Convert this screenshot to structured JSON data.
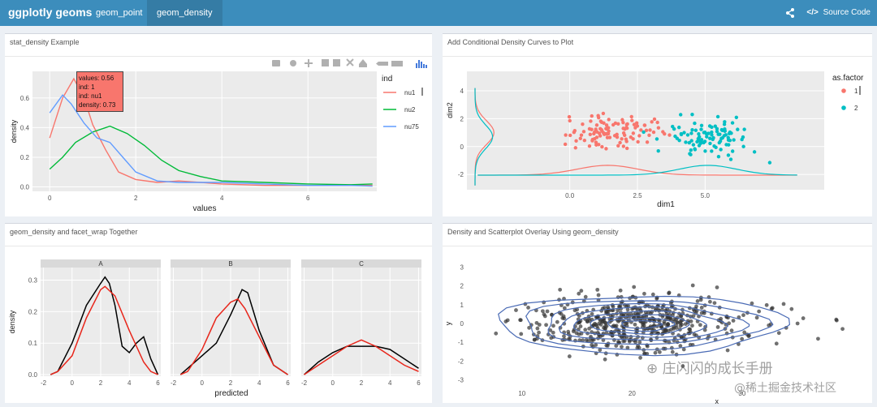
{
  "navbar": {
    "brand": "ggplotly geoms",
    "tabs": [
      {
        "label": "geom_point"
      },
      {
        "label": "geom_density"
      }
    ],
    "active_tab": "geom_density",
    "share_icon": "share-icon",
    "source_code_label": "Source Code"
  },
  "panels": {
    "p1": {
      "title": "stat_density Example"
    },
    "p2": {
      "title": "Add Conditional Density Curves to Plot"
    },
    "p3": {
      "title": "geom_density and facet_wrap Together"
    },
    "p4": {
      "title": "Density and Scatterplot Overlay Using geom_density"
    }
  },
  "modebar": {
    "icons": [
      "camera-icon",
      "zoom-icon",
      "pan-icon",
      "zoom-in-icon",
      "zoom-out-icon",
      "autoscale-icon",
      "reset-axes-icon",
      "hover-closest-icon",
      "hover-compare-icon",
      "plotly-logo-icon"
    ]
  },
  "tooltip": {
    "line1": "values: 0.56",
    "line2": "ind: 1",
    "line3": "ind: nu1",
    "line4": "density: 0.73"
  },
  "watermark": {
    "line1": "庄闪闪的成长手册",
    "line2": "@稀土掘金技术社区"
  },
  "chart_data": [
    {
      "type": "line",
      "title": "stat_density Example",
      "xlabel": "values",
      "ylabel": "density",
      "xlim": [
        -0.4,
        7.6
      ],
      "ylim": [
        -0.03,
        0.78
      ],
      "xticks": [
        "0",
        "2",
        "4",
        "6"
      ],
      "yticks": [
        "0.0",
        "0.2",
        "0.4",
        "0.6"
      ],
      "legend": {
        "title": "ind",
        "entries": [
          "nu1",
          "nu2",
          "nu75"
        ],
        "colors": [
          "#F8766D",
          "#00BA38",
          "#619CFF"
        ],
        "placement": "right"
      },
      "series": [
        {
          "name": "nu1",
          "color": "#F8766D",
          "x": [
            0,
            0.3,
            0.56,
            0.8,
            1.0,
            1.3,
            1.6,
            2.0,
            2.5,
            3.0,
            3.5,
            4.0,
            5.0,
            6.0,
            7.0,
            7.5
          ],
          "y": [
            0.33,
            0.6,
            0.73,
            0.6,
            0.42,
            0.25,
            0.1,
            0.05,
            0.03,
            0.04,
            0.03,
            0.02,
            0.01,
            0.01,
            0.01,
            0.01
          ]
        },
        {
          "name": "nu2",
          "color": "#00BA38",
          "x": [
            0,
            0.3,
            0.6,
            1.0,
            1.4,
            1.8,
            2.2,
            2.6,
            3.0,
            3.5,
            4.0,
            5.0,
            6.0,
            7.0,
            7.5
          ],
          "y": [
            0.12,
            0.2,
            0.3,
            0.37,
            0.41,
            0.36,
            0.28,
            0.18,
            0.11,
            0.07,
            0.04,
            0.03,
            0.02,
            0.015,
            0.02
          ]
        },
        {
          "name": "nu75",
          "color": "#619CFF",
          "x": [
            0,
            0.3,
            0.5,
            0.8,
            1.1,
            1.4,
            1.7,
            2.0,
            2.5,
            3.0,
            4.0,
            5.0,
            6.0,
            7.0,
            7.5
          ],
          "y": [
            0.5,
            0.62,
            0.56,
            0.43,
            0.33,
            0.3,
            0.2,
            0.1,
            0.04,
            0.03,
            0.03,
            0.02,
            0.01,
            0.01,
            0.005
          ]
        }
      ]
    },
    {
      "type": "scatter",
      "title": "Add Conditional Density Curves to Plot",
      "xlabel": "dim1",
      "ylabel": "dim2",
      "xlim": [
        -3.8,
        9.4
      ],
      "ylim": [
        -3.1,
        5.4
      ],
      "xticks": [
        "0.0",
        "2.5",
        "5.0"
      ],
      "yticks": [
        "-2",
        "0",
        "2",
        "4"
      ],
      "legend": {
        "title": "as.factor",
        "entries": [
          "1",
          "2"
        ],
        "colors": [
          "#F8766D",
          "#00BFC4"
        ],
        "placement": "right"
      },
      "groups": [
        {
          "name": "1",
          "color": "#F8766D",
          "center": [
            1.4,
            1.0
          ],
          "spread": [
            1.5,
            1.2
          ],
          "n": 110
        },
        {
          "name": "2",
          "color": "#00BFC4",
          "center": [
            5.1,
            0.7
          ],
          "spread": [
            1.3,
            1.2
          ],
          "n": 100
        }
      ]
    },
    {
      "type": "line",
      "title": "geom_density and facet_wrap Together",
      "xlabel": "predicted",
      "ylabel": "density",
      "facets": [
        "A",
        "B",
        "C"
      ],
      "xlim": [
        -2.2,
        6.2
      ],
      "ylim": [
        -0.005,
        0.34
      ],
      "xticks": [
        "-2",
        "0",
        "2",
        "4",
        "6"
      ],
      "yticks": [
        "0.0",
        "0.1",
        "0.2",
        "0.3"
      ],
      "series": [
        {
          "facet": "A",
          "color": "#000000",
          "x": [
            -1.5,
            -1,
            0,
            1,
            2,
            2.3,
            2.6,
            3,
            3.5,
            4,
            4.5,
            5,
            5.5,
            6
          ],
          "y": [
            0.0,
            0.01,
            0.1,
            0.22,
            0.29,
            0.31,
            0.29,
            0.22,
            0.09,
            0.07,
            0.1,
            0.12,
            0.05,
            0.0
          ]
        },
        {
          "facet": "A",
          "color": "#E8261B",
          "x": [
            -1.5,
            -1,
            0,
            1,
            2,
            2.3,
            3,
            4,
            5,
            5.5,
            6
          ],
          "y": [
            0.0,
            0.01,
            0.06,
            0.18,
            0.27,
            0.28,
            0.25,
            0.14,
            0.04,
            0.01,
            0.0
          ]
        },
        {
          "facet": "B",
          "color": "#000000",
          "x": [
            -1.5,
            -1,
            0,
            1,
            2,
            2.8,
            3.2,
            3.6,
            4,
            5,
            6
          ],
          "y": [
            0.0,
            0.02,
            0.06,
            0.1,
            0.19,
            0.27,
            0.26,
            0.2,
            0.14,
            0.03,
            0.0
          ]
        },
        {
          "facet": "B",
          "color": "#E8261B",
          "x": [
            -1.5,
            -1,
            0,
            1,
            2,
            2.5,
            3,
            4,
            5,
            6
          ],
          "y": [
            0.0,
            0.01,
            0.08,
            0.18,
            0.23,
            0.24,
            0.21,
            0.12,
            0.03,
            0.0
          ]
        },
        {
          "facet": "C",
          "color": "#000000",
          "x": [
            -2,
            -1.5,
            -1,
            0,
            1,
            2,
            3,
            3.5,
            4,
            5,
            6
          ],
          "y": [
            0.0,
            0.02,
            0.04,
            0.07,
            0.09,
            0.09,
            0.09,
            0.085,
            0.08,
            0.05,
            0.02
          ]
        },
        {
          "facet": "C",
          "color": "#E8261B",
          "x": [
            -2,
            -1,
            0,
            1,
            2,
            3,
            4,
            5,
            6
          ],
          "y": [
            0.0,
            0.03,
            0.06,
            0.09,
            0.11,
            0.09,
            0.06,
            0.03,
            0.01
          ]
        }
      ]
    },
    {
      "type": "scatter",
      "title": "Density and Scatterplot Overlay Using geom_density",
      "xlabel": "x",
      "ylabel": "y",
      "xlim": [
        5,
        41
      ],
      "ylim": [
        -3.4,
        3.4
      ],
      "xticks": [
        "10",
        "20",
        "30"
      ],
      "yticks": [
        "-3",
        "-2",
        "-1",
        "0",
        "1",
        "2",
        "3"
      ],
      "point_color": "#333333",
      "contour_color": "#4A6BB5",
      "center": [
        20,
        0
      ],
      "spread": [
        6,
        1.0
      ],
      "n": 560
    }
  ]
}
